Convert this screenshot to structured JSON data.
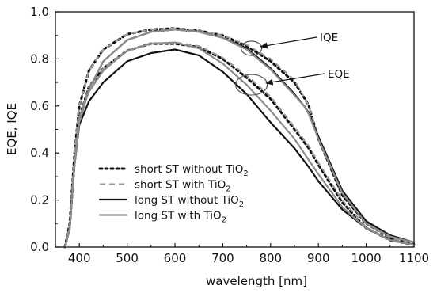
{
  "chart_data": {
    "type": "line",
    "title": "",
    "xlabel": "wavelength [nm]",
    "ylabel": "EQE, IQE",
    "xlim": [
      350,
      1100
    ],
    "ylim": [
      0.0,
      1.0
    ],
    "x_ticks": [
      400,
      500,
      600,
      700,
      800,
      900,
      1000,
      1100
    ],
    "y_ticks": [
      "0.0",
      "0.2",
      "0.4",
      "0.6",
      "0.8",
      "1.0"
    ],
    "grid": false,
    "legend_position": "bottom-left",
    "legend": [
      {
        "series": "short ST without TiO",
        "sub": "2"
      },
      {
        "series": "short ST with TiO",
        "sub": "2"
      },
      {
        "series": "long ST without TiO",
        "sub": "2"
      },
      {
        "series": "long ST with TiO",
        "sub": "2"
      }
    ],
    "annotations": [
      {
        "text": "IQE",
        "target_x": 760,
        "target_y": 0.845
      },
      {
        "text": "EQE",
        "target_x": 760,
        "target_y": 0.69
      }
    ],
    "series": [
      {
        "name": "short ST without TiO2",
        "style": "dotted",
        "color": "#111111",
        "curves": [
          {
            "quantity": "IQE",
            "x": [
              370,
              380,
              390,
              400,
              420,
              450,
              500,
              550,
              600,
              650,
              700,
              750,
              800,
              850,
              875,
              880,
              900,
              950,
              1000,
              1050,
              1100
            ],
            "y": [
              0.0,
              0.1,
              0.4,
              0.6,
              0.75,
              0.84,
              0.905,
              0.925,
              0.93,
              0.92,
              0.9,
              0.855,
              0.79,
              0.7,
              0.62,
              0.6,
              0.46,
              0.22,
              0.1,
              0.04,
              0.01
            ]
          },
          {
            "quantity": "EQE",
            "x": [
              370,
              380,
              390,
              400,
              420,
              450,
              500,
              550,
              600,
              650,
              700,
              750,
              800,
              850,
              880,
              900,
              950,
              1000,
              1050,
              1100
            ],
            "y": [
              0.0,
              0.09,
              0.37,
              0.55,
              0.68,
              0.76,
              0.835,
              0.865,
              0.865,
              0.85,
              0.8,
              0.72,
              0.63,
              0.5,
              0.42,
              0.35,
              0.19,
              0.08,
              0.03,
              0.01
            ]
          }
        ]
      },
      {
        "name": "short ST with TiO2",
        "style": "dashed",
        "color": "#9a9a9a",
        "curves": [
          {
            "quantity": "IQE",
            "x": [
              370,
              380,
              390,
              400,
              420,
              450,
              500,
              550,
              600,
              650,
              700,
              750,
              800,
              850,
              875,
              880,
              900,
              950,
              1000,
              1050,
              1100
            ],
            "y": [
              0.0,
              0.1,
              0.4,
              0.6,
              0.75,
              0.84,
              0.905,
              0.925,
              0.93,
              0.92,
              0.9,
              0.86,
              0.8,
              0.71,
              0.62,
              0.6,
              0.47,
              0.23,
              0.1,
              0.04,
              0.01
            ]
          },
          {
            "quantity": "EQE",
            "x": [
              370,
              380,
              390,
              400,
              420,
              450,
              500,
              550,
              600,
              650,
              700,
              750,
              800,
              850,
              880,
              900,
              950,
              1000,
              1050,
              1100
            ],
            "y": [
              0.0,
              0.09,
              0.37,
              0.55,
              0.68,
              0.76,
              0.835,
              0.865,
              0.87,
              0.855,
              0.805,
              0.73,
              0.64,
              0.51,
              0.43,
              0.36,
              0.2,
              0.085,
              0.03,
              0.01
            ]
          }
        ]
      },
      {
        "name": "long ST without TiO2",
        "style": "solid",
        "color": "#111111",
        "curves": [
          {
            "quantity": "IQE",
            "x": [
              370,
              380,
              390,
              400,
              420,
              450,
              500,
              550,
              600,
              650,
              700,
              750,
              800,
              850,
              870,
              880,
              900,
              950,
              1000,
              1050,
              1100
            ],
            "y": [
              0.0,
              0.08,
              0.35,
              0.53,
              0.67,
              0.79,
              0.88,
              0.915,
              0.925,
              0.915,
              0.89,
              0.845,
              0.76,
              0.65,
              0.6,
              0.57,
              0.47,
              0.24,
              0.11,
              0.05,
              0.02
            ]
          },
          {
            "quantity": "EQE",
            "x": [
              370,
              380,
              390,
              400,
              420,
              450,
              500,
              550,
              600,
              650,
              700,
              750,
              800,
              850,
              880,
              900,
              950,
              1000,
              1050,
              1100
            ],
            "y": [
              0.0,
              0.08,
              0.35,
              0.52,
              0.62,
              0.7,
              0.79,
              0.825,
              0.84,
              0.815,
              0.745,
              0.65,
              0.53,
              0.42,
              0.34,
              0.28,
              0.16,
              0.08,
              0.03,
              0.01
            ]
          }
        ]
      },
      {
        "name": "long ST with TiO2",
        "style": "solid",
        "color": "#8c8c8c",
        "curves": [
          {
            "quantity": "IQE",
            "x": [
              370,
              380,
              390,
              400,
              420,
              450,
              500,
              550,
              600,
              650,
              700,
              750,
              800,
              850,
              870,
              880,
              900,
              950,
              1000,
              1050,
              1100
            ],
            "y": [
              0.0,
              0.08,
              0.35,
              0.53,
              0.67,
              0.79,
              0.88,
              0.915,
              0.925,
              0.915,
              0.89,
              0.84,
              0.755,
              0.645,
              0.6,
              0.565,
              0.46,
              0.23,
              0.1,
              0.045,
              0.02
            ]
          },
          {
            "quantity": "EQE",
            "x": [
              370,
              380,
              390,
              400,
              420,
              450,
              500,
              550,
              600,
              650,
              700,
              750,
              800,
              850,
              880,
              900,
              950,
              1000,
              1050,
              1100
            ],
            "y": [
              0.0,
              0.08,
              0.36,
              0.55,
              0.66,
              0.75,
              0.835,
              0.865,
              0.87,
              0.845,
              0.78,
              0.69,
              0.58,
              0.46,
              0.37,
              0.31,
              0.17,
              0.08,
              0.03,
              0.01
            ]
          }
        ]
      }
    ]
  }
}
